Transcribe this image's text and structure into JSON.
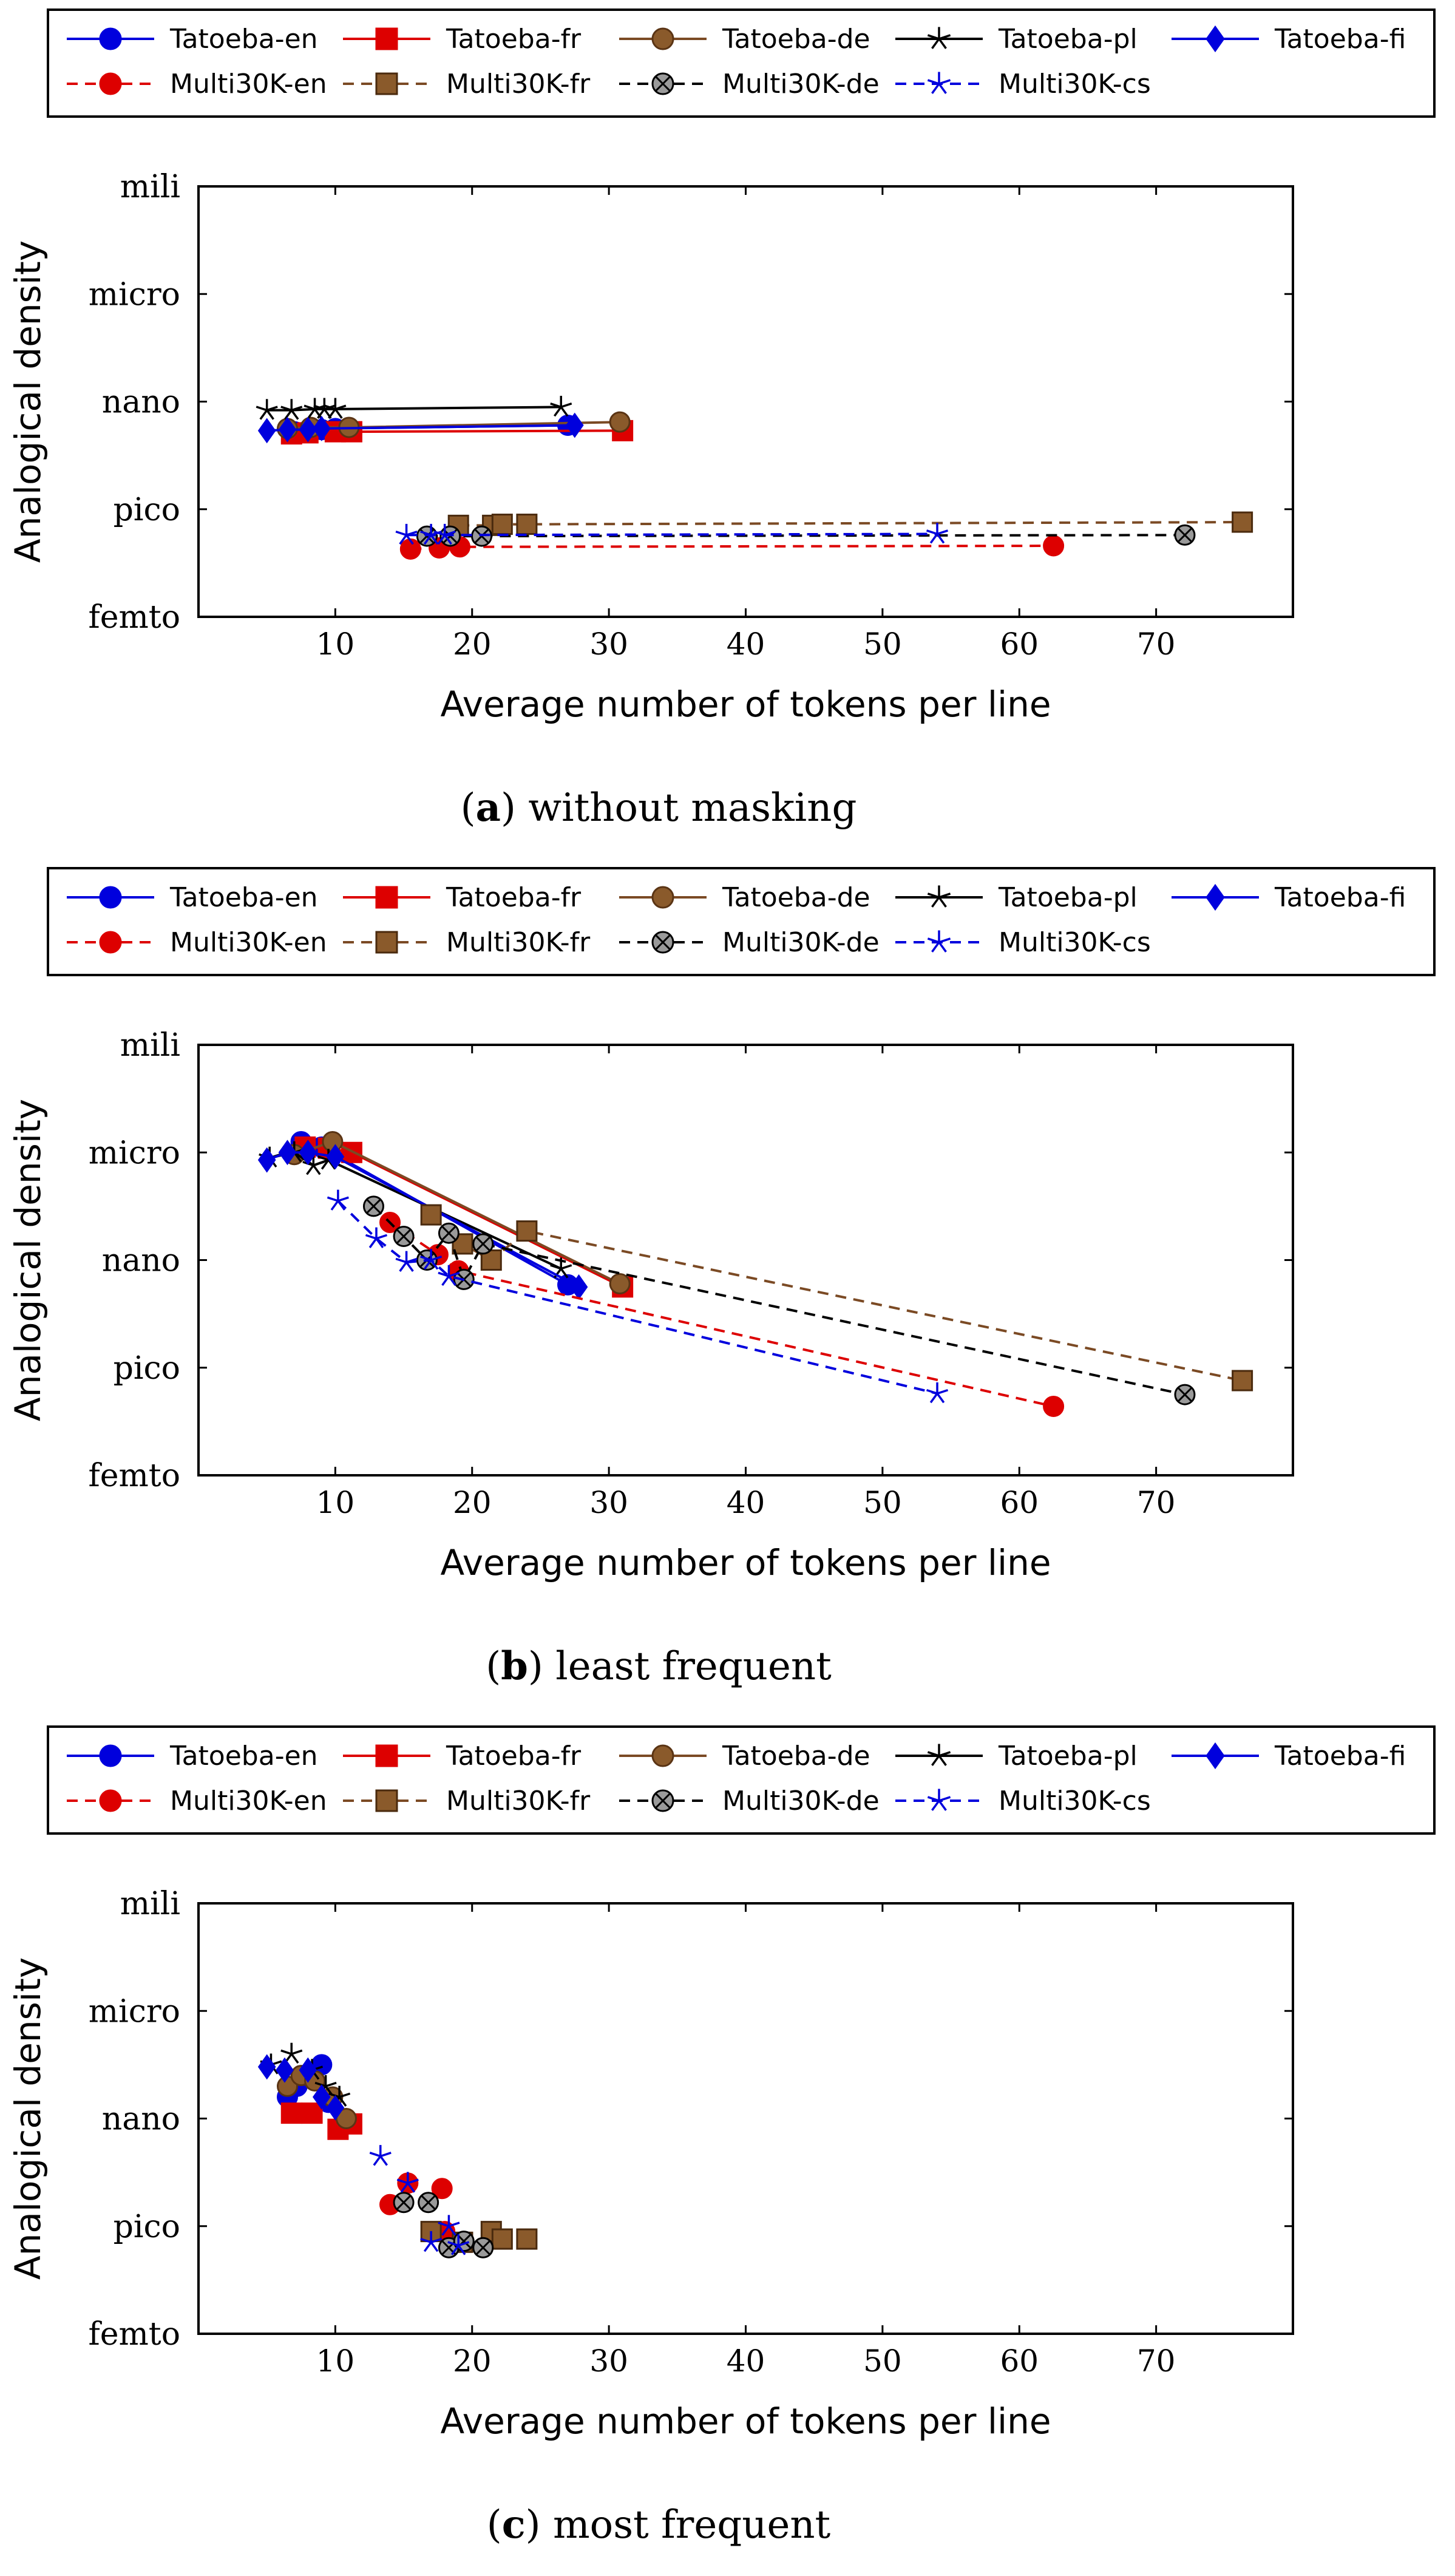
{
  "legend_entries": [
    {
      "name": "Tatoeba-en",
      "color": "#0000dd",
      "marker": "circle",
      "dash": "solid"
    },
    {
      "name": "Tatoeba-fr",
      "color": "#dd0000",
      "marker": "square",
      "dash": "solid"
    },
    {
      "name": "Tatoeba-de",
      "color": "#7b4a24",
      "marker": "circle-brown",
      "dash": "solid"
    },
    {
      "name": "Tatoeba-pl",
      "color": "#000000",
      "marker": "star",
      "dash": "solid"
    },
    {
      "name": "Tatoeba-fi",
      "color": "#0000dd",
      "marker": "diamond",
      "dash": "solid"
    },
    {
      "name": "Multi30K-en",
      "color": "#dd0000",
      "marker": "circle-red",
      "dash": "dashed"
    },
    {
      "name": "Multi30K-fr",
      "color": "#7b4a24",
      "marker": "square-brown",
      "dash": "dashed"
    },
    {
      "name": "Multi30K-de",
      "color": "#000000",
      "marker": "otimes",
      "dash": "dashed"
    },
    {
      "name": "Multi30K-cs",
      "color": "#0000dd",
      "marker": "star",
      "dash": "dashed"
    }
  ],
  "chart_data": [
    {
      "type": "line",
      "label": "a",
      "caption": "without masking",
      "xlabel": "Average number of tokens per line",
      "ylabel": "Analogical density",
      "xlim": [
        0,
        80
      ],
      "ylim": [
        0,
        4
      ],
      "xticks": [
        10,
        20,
        30,
        40,
        50,
        60,
        70
      ],
      "yticks": [
        {
          "v": 0,
          "label": "femto"
        },
        {
          "v": 1,
          "label": "pico"
        },
        {
          "v": 2,
          "label": "nano"
        },
        {
          "v": 3,
          "label": "micro"
        },
        {
          "v": 4,
          "label": "mili"
        }
      ],
      "series": [
        {
          "name": "Tatoeba-en",
          "x": [
            7,
            8,
            9,
            10,
            27
          ],
          "y": [
            1.72,
            1.73,
            1.74,
            1.75,
            1.78
          ]
        },
        {
          "name": "Tatoeba-fr",
          "x": [
            6.8,
            8,
            10,
            11.2,
            31
          ],
          "y": [
            1.7,
            1.71,
            1.72,
            1.72,
            1.73
          ]
        },
        {
          "name": "Tatoeba-de",
          "x": [
            6.5,
            8.2,
            11,
            30.8
          ],
          "y": [
            1.75,
            1.76,
            1.76,
            1.81
          ]
        },
        {
          "name": "Tatoeba-pl",
          "x": [
            5,
            6.8,
            8.5,
            9.2,
            10,
            26.5
          ],
          "y": [
            1.92,
            1.92,
            1.93,
            1.93,
            1.93,
            1.95
          ]
        },
        {
          "name": "Tatoeba-fi",
          "x": [
            5,
            6.5,
            8,
            9,
            27.5
          ],
          "y": [
            1.73,
            1.74,
            1.74,
            1.75,
            1.78
          ]
        },
        {
          "name": "Multi30K-en",
          "x": [
            15.5,
            17.6,
            19.1,
            62.5
          ],
          "y": [
            0.63,
            0.64,
            0.65,
            0.66
          ]
        },
        {
          "name": "Multi30K-fr",
          "x": [
            19,
            21.5,
            22.2,
            24,
            76.3
          ],
          "y": [
            0.85,
            0.85,
            0.86,
            0.86,
            0.88
          ]
        },
        {
          "name": "Multi30K-de",
          "x": [
            16.7,
            18.4,
            20.7,
            72.1
          ],
          "y": [
            0.75,
            0.75,
            0.75,
            0.76
          ]
        },
        {
          "name": "Multi30K-cs",
          "x": [
            15.2,
            17,
            18,
            54
          ],
          "y": [
            0.76,
            0.76,
            0.76,
            0.77
          ]
        }
      ]
    },
    {
      "type": "line",
      "label": "b",
      "caption": "least frequent",
      "xlabel": "Average number of tokens per line",
      "ylabel": "Analogical density",
      "xlim": [
        0,
        80
      ],
      "ylim": [
        0,
        4
      ],
      "xticks": [
        10,
        20,
        30,
        40,
        50,
        60,
        70
      ],
      "yticks": [
        {
          "v": 0,
          "label": "femto"
        },
        {
          "v": 1,
          "label": "pico"
        },
        {
          "v": 2,
          "label": "nano"
        },
        {
          "v": 3,
          "label": "micro"
        },
        {
          "v": 4,
          "label": "mili"
        }
      ],
      "series": [
        {
          "name": "Tatoeba-en",
          "x": [
            7.5,
            9,
            27
          ],
          "y": [
            3.1,
            3.05,
            1.77
          ]
        },
        {
          "name": "Tatoeba-fr",
          "x": [
            7.8,
            9.5,
            11.2,
            31
          ],
          "y": [
            3.05,
            3.04,
            3.0,
            1.75
          ]
        },
        {
          "name": "Tatoeba-de",
          "x": [
            7,
            9.8,
            30.8
          ],
          "y": [
            2.98,
            3.1,
            1.78
          ]
        },
        {
          "name": "Tatoeba-pl",
          "x": [
            5.2,
            7,
            8.4,
            9.5,
            26.5
          ],
          "y": [
            2.95,
            3.0,
            2.88,
            2.93,
            1.92
          ]
        },
        {
          "name": "Tatoeba-fi",
          "x": [
            5,
            6.5,
            8,
            10,
            27.8
          ],
          "y": [
            2.93,
            3.0,
            3.0,
            2.96,
            1.75
          ]
        },
        {
          "name": "Multi30K-en",
          "x": [
            14,
            17.5,
            19,
            62.5
          ],
          "y": [
            2.35,
            2.05,
            1.9,
            0.64
          ]
        },
        {
          "name": "Multi30K-fr",
          "x": [
            17,
            19.3,
            21.4,
            24,
            76.3
          ],
          "y": [
            2.42,
            2.15,
            2.0,
            2.27,
            0.88
          ]
        },
        {
          "name": "Multi30K-de",
          "x": [
            12.8,
            15,
            16.7,
            18.3,
            19.4,
            20.8,
            72.1
          ],
          "y": [
            2.5,
            2.22,
            2.0,
            2.25,
            1.82,
            2.15,
            0.75
          ]
        },
        {
          "name": "Multi30K-cs",
          "x": [
            10.2,
            13,
            15.2,
            17,
            18.3,
            54
          ],
          "y": [
            2.55,
            2.2,
            1.98,
            2.0,
            1.85,
            0.76
          ]
        }
      ]
    },
    {
      "type": "scatter",
      "label": "c",
      "caption": "most frequent",
      "xlabel": "Average number of tokens per line",
      "ylabel": "Analogical density",
      "xlim": [
        0,
        80
      ],
      "ylim": [
        0,
        4
      ],
      "xticks": [
        10,
        20,
        30,
        40,
        50,
        60,
        70
      ],
      "yticks": [
        {
          "v": 0,
          "label": "femto"
        },
        {
          "v": 1,
          "label": "pico"
        },
        {
          "v": 2,
          "label": "nano"
        },
        {
          "v": 3,
          "label": "micro"
        },
        {
          "v": 4,
          "label": "mili"
        }
      ],
      "series": [
        {
          "name": "Tatoeba-en",
          "x": [
            6.5,
            7.2,
            8.2,
            9,
            9.5
          ],
          "y": [
            2.2,
            2.3,
            2.4,
            2.5,
            2.15
          ]
        },
        {
          "name": "Tatoeba-fr",
          "x": [
            6.8,
            8.3,
            10.2,
            11.2
          ],
          "y": [
            2.05,
            2.05,
            1.9,
            1.95
          ]
        },
        {
          "name": "Tatoeba-de",
          "x": [
            6.5,
            7.5,
            8.5,
            9.8,
            10.8
          ],
          "y": [
            2.3,
            2.4,
            2.35,
            2.2,
            2.0
          ]
        },
        {
          "name": "Tatoeba-pl",
          "x": [
            5.3,
            6.8,
            8.3,
            9.3,
            10.3
          ],
          "y": [
            2.5,
            2.6,
            2.45,
            2.3,
            2.2
          ]
        },
        {
          "name": "Tatoeba-fi",
          "x": [
            5,
            6.3,
            8,
            9,
            10
          ],
          "y": [
            2.48,
            2.45,
            2.45,
            2.2,
            2.1
          ]
        },
        {
          "name": "Multi30K-en",
          "x": [
            14,
            15.3,
            17.8,
            18
          ],
          "y": [
            1.2,
            1.4,
            1.35,
            0.95
          ]
        },
        {
          "name": "Multi30K-fr",
          "x": [
            17,
            19.3,
            21.4,
            22.2,
            24
          ],
          "y": [
            0.95,
            0.85,
            0.95,
            0.88,
            0.88
          ]
        },
        {
          "name": "Multi30K-de",
          "x": [
            15,
            16.8,
            18.3,
            19.4,
            20.8
          ],
          "y": [
            1.22,
            1.22,
            0.8,
            0.86,
            0.8
          ]
        },
        {
          "name": "Multi30K-cs",
          "x": [
            13.3,
            15.3,
            17,
            18.3,
            19
          ],
          "y": [
            1.65,
            1.4,
            0.85,
            1.0,
            0.82
          ]
        }
      ]
    }
  ]
}
